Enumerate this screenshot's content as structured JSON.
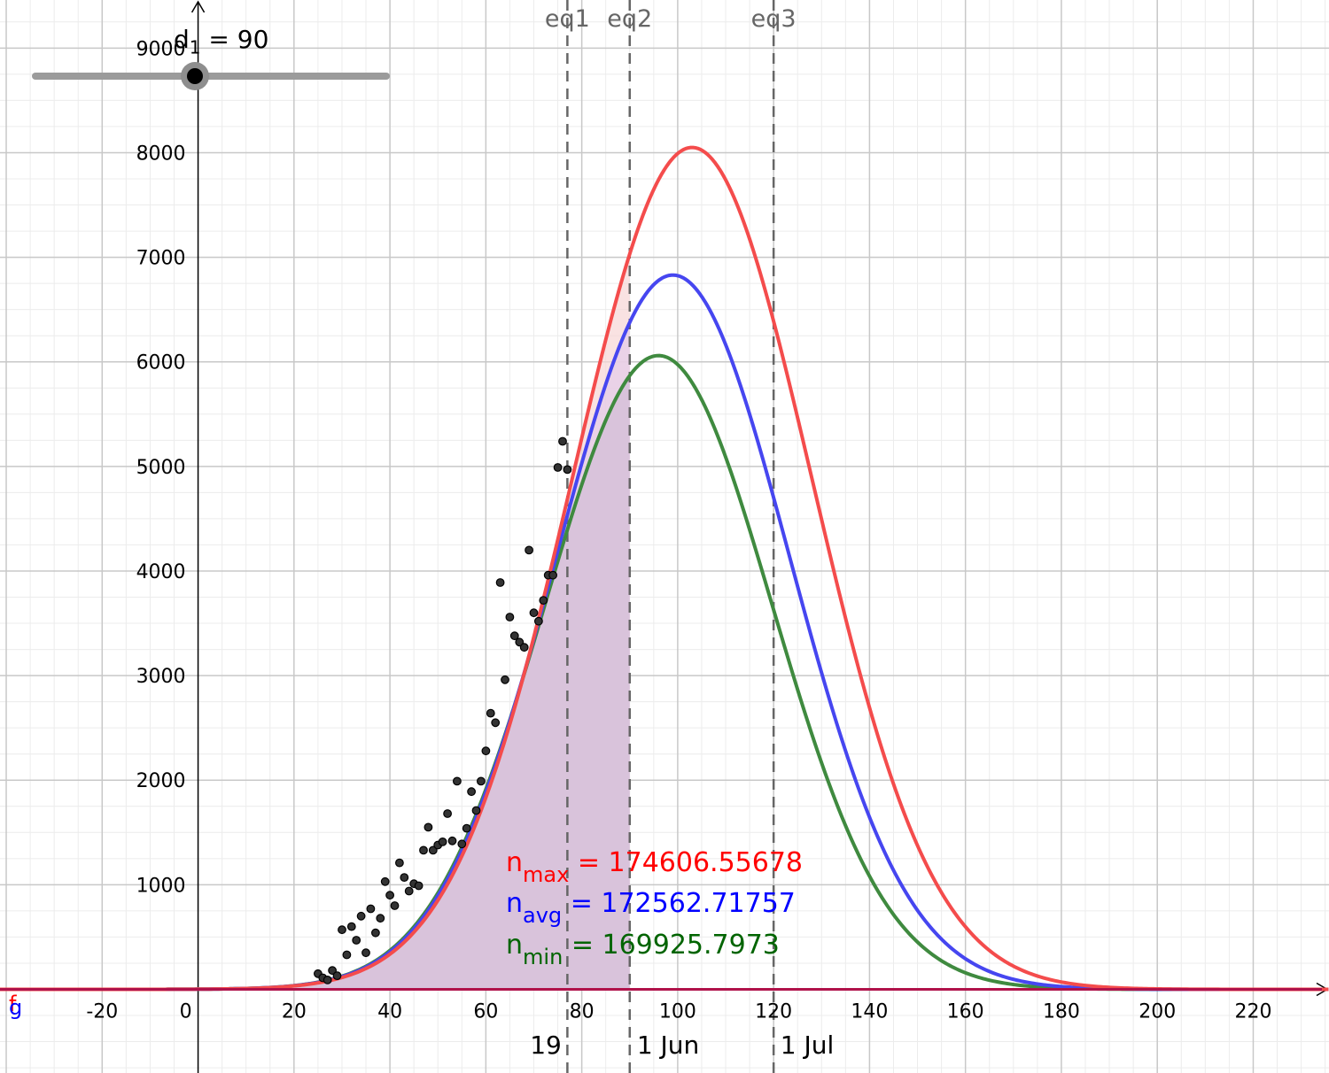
{
  "slider": {
    "name": "d",
    "subscript": "1",
    "equals": " = ",
    "value": 90,
    "value_text": "90"
  },
  "colors": {
    "max": "#f44c4c",
    "avg": "#4646f0",
    "min": "#3f8a3f",
    "shade_fill": "#d9c3db",
    "points": "#333333",
    "grid_major": "#c8c8c8",
    "grid_minor": "#ececec",
    "eq_lines": "#666666",
    "text_max": "#ff0000",
    "text_avg": "#0000ff",
    "text_min": "#006400"
  },
  "annotations": {
    "n_max": {
      "base": "n",
      "sub": "max",
      "rest": " = 174606.55678"
    },
    "n_avg": {
      "base": "n",
      "sub": "avg",
      "rest": " = 172562.71757"
    },
    "n_min": {
      "base": "n",
      "sub": "min",
      "rest": " = 169925.7973"
    }
  },
  "axis_letters": {
    "f": "f",
    "g": "g"
  },
  "chart_data": {
    "type": "line",
    "title": "",
    "xlabel": "",
    "ylabel": "",
    "xlim": [
      -41.3,
      235.8
    ],
    "ylim": [
      -800,
      9460
    ],
    "grid": true,
    "x_ticks": [
      -20,
      0,
      20,
      40,
      60,
      80,
      100,
      120,
      140,
      160,
      180,
      200,
      220
    ],
    "y_ticks": [
      1000,
      2000,
      3000,
      4000,
      5000,
      6000,
      7000,
      8000,
      9000
    ],
    "x_tick_labels": [
      "-20",
      "0",
      "20",
      "40",
      "60",
      "80",
      "100",
      "120",
      "140",
      "160",
      "180",
      "200",
      "220"
    ],
    "y_tick_labels": [
      "1000",
      "2000",
      "3000",
      "4000",
      "5000",
      "6000",
      "7000",
      "8000",
      "9000"
    ],
    "series": [
      {
        "key": "max",
        "peak": 8050,
        "mean": 103,
        "sd": 25.0
      },
      {
        "key": "avg",
        "peak": 6830,
        "mean": 99,
        "sd": 24.3
      },
      {
        "key": "min",
        "peak": 6060,
        "mean": 96,
        "sd": 23.7
      }
    ],
    "shaded_region": {
      "x_from": 0,
      "x_to": 90
    },
    "vertical_lines": [
      {
        "x": 77,
        "label": "eq1"
      },
      {
        "x": 90,
        "label": "eq2"
      },
      {
        "x": 120,
        "label": "eq3"
      }
    ],
    "date_labels": [
      {
        "x": 72.5,
        "text": "19"
      },
      {
        "x": 98,
        "text": "1 Jun"
      },
      {
        "x": 127,
        "text": "1 Jul"
      }
    ],
    "scatter": [
      [
        25,
        150
      ],
      [
        26,
        110
      ],
      [
        27,
        90
      ],
      [
        28,
        180
      ],
      [
        29,
        130
      ],
      [
        30,
        570
      ],
      [
        31,
        330
      ],
      [
        32,
        600
      ],
      [
        33,
        470
      ],
      [
        34,
        700
      ],
      [
        35,
        350
      ],
      [
        36,
        770
      ],
      [
        37,
        540
      ],
      [
        38,
        680
      ],
      [
        39,
        1030
      ],
      [
        40,
        900
      ],
      [
        41,
        800
      ],
      [
        42,
        1210
      ],
      [
        43,
        1070
      ],
      [
        44,
        940
      ],
      [
        45,
        1010
      ],
      [
        46,
        990
      ],
      [
        47,
        1330
      ],
      [
        48,
        1550
      ],
      [
        49,
        1330
      ],
      [
        50,
        1380
      ],
      [
        51,
        1410
      ],
      [
        52,
        1680
      ],
      [
        53,
        1420
      ],
      [
        54,
        1990
      ],
      [
        55,
        1390
      ],
      [
        56,
        1540
      ],
      [
        57,
        1890
      ],
      [
        58,
        1710
      ],
      [
        59,
        1990
      ],
      [
        60,
        2280
      ],
      [
        61,
        2640
      ],
      [
        62,
        2550
      ],
      [
        63,
        3890
      ],
      [
        64,
        2960
      ],
      [
        65,
        3560
      ],
      [
        66,
        3380
      ],
      [
        67,
        3320
      ],
      [
        68,
        3270
      ],
      [
        69,
        4200
      ],
      [
        70,
        3600
      ],
      [
        71,
        3520
      ],
      [
        72,
        3720
      ],
      [
        73,
        3960
      ],
      [
        74,
        3960
      ],
      [
        75,
        4990
      ],
      [
        76,
        5240
      ],
      [
        77,
        4970
      ]
    ]
  }
}
